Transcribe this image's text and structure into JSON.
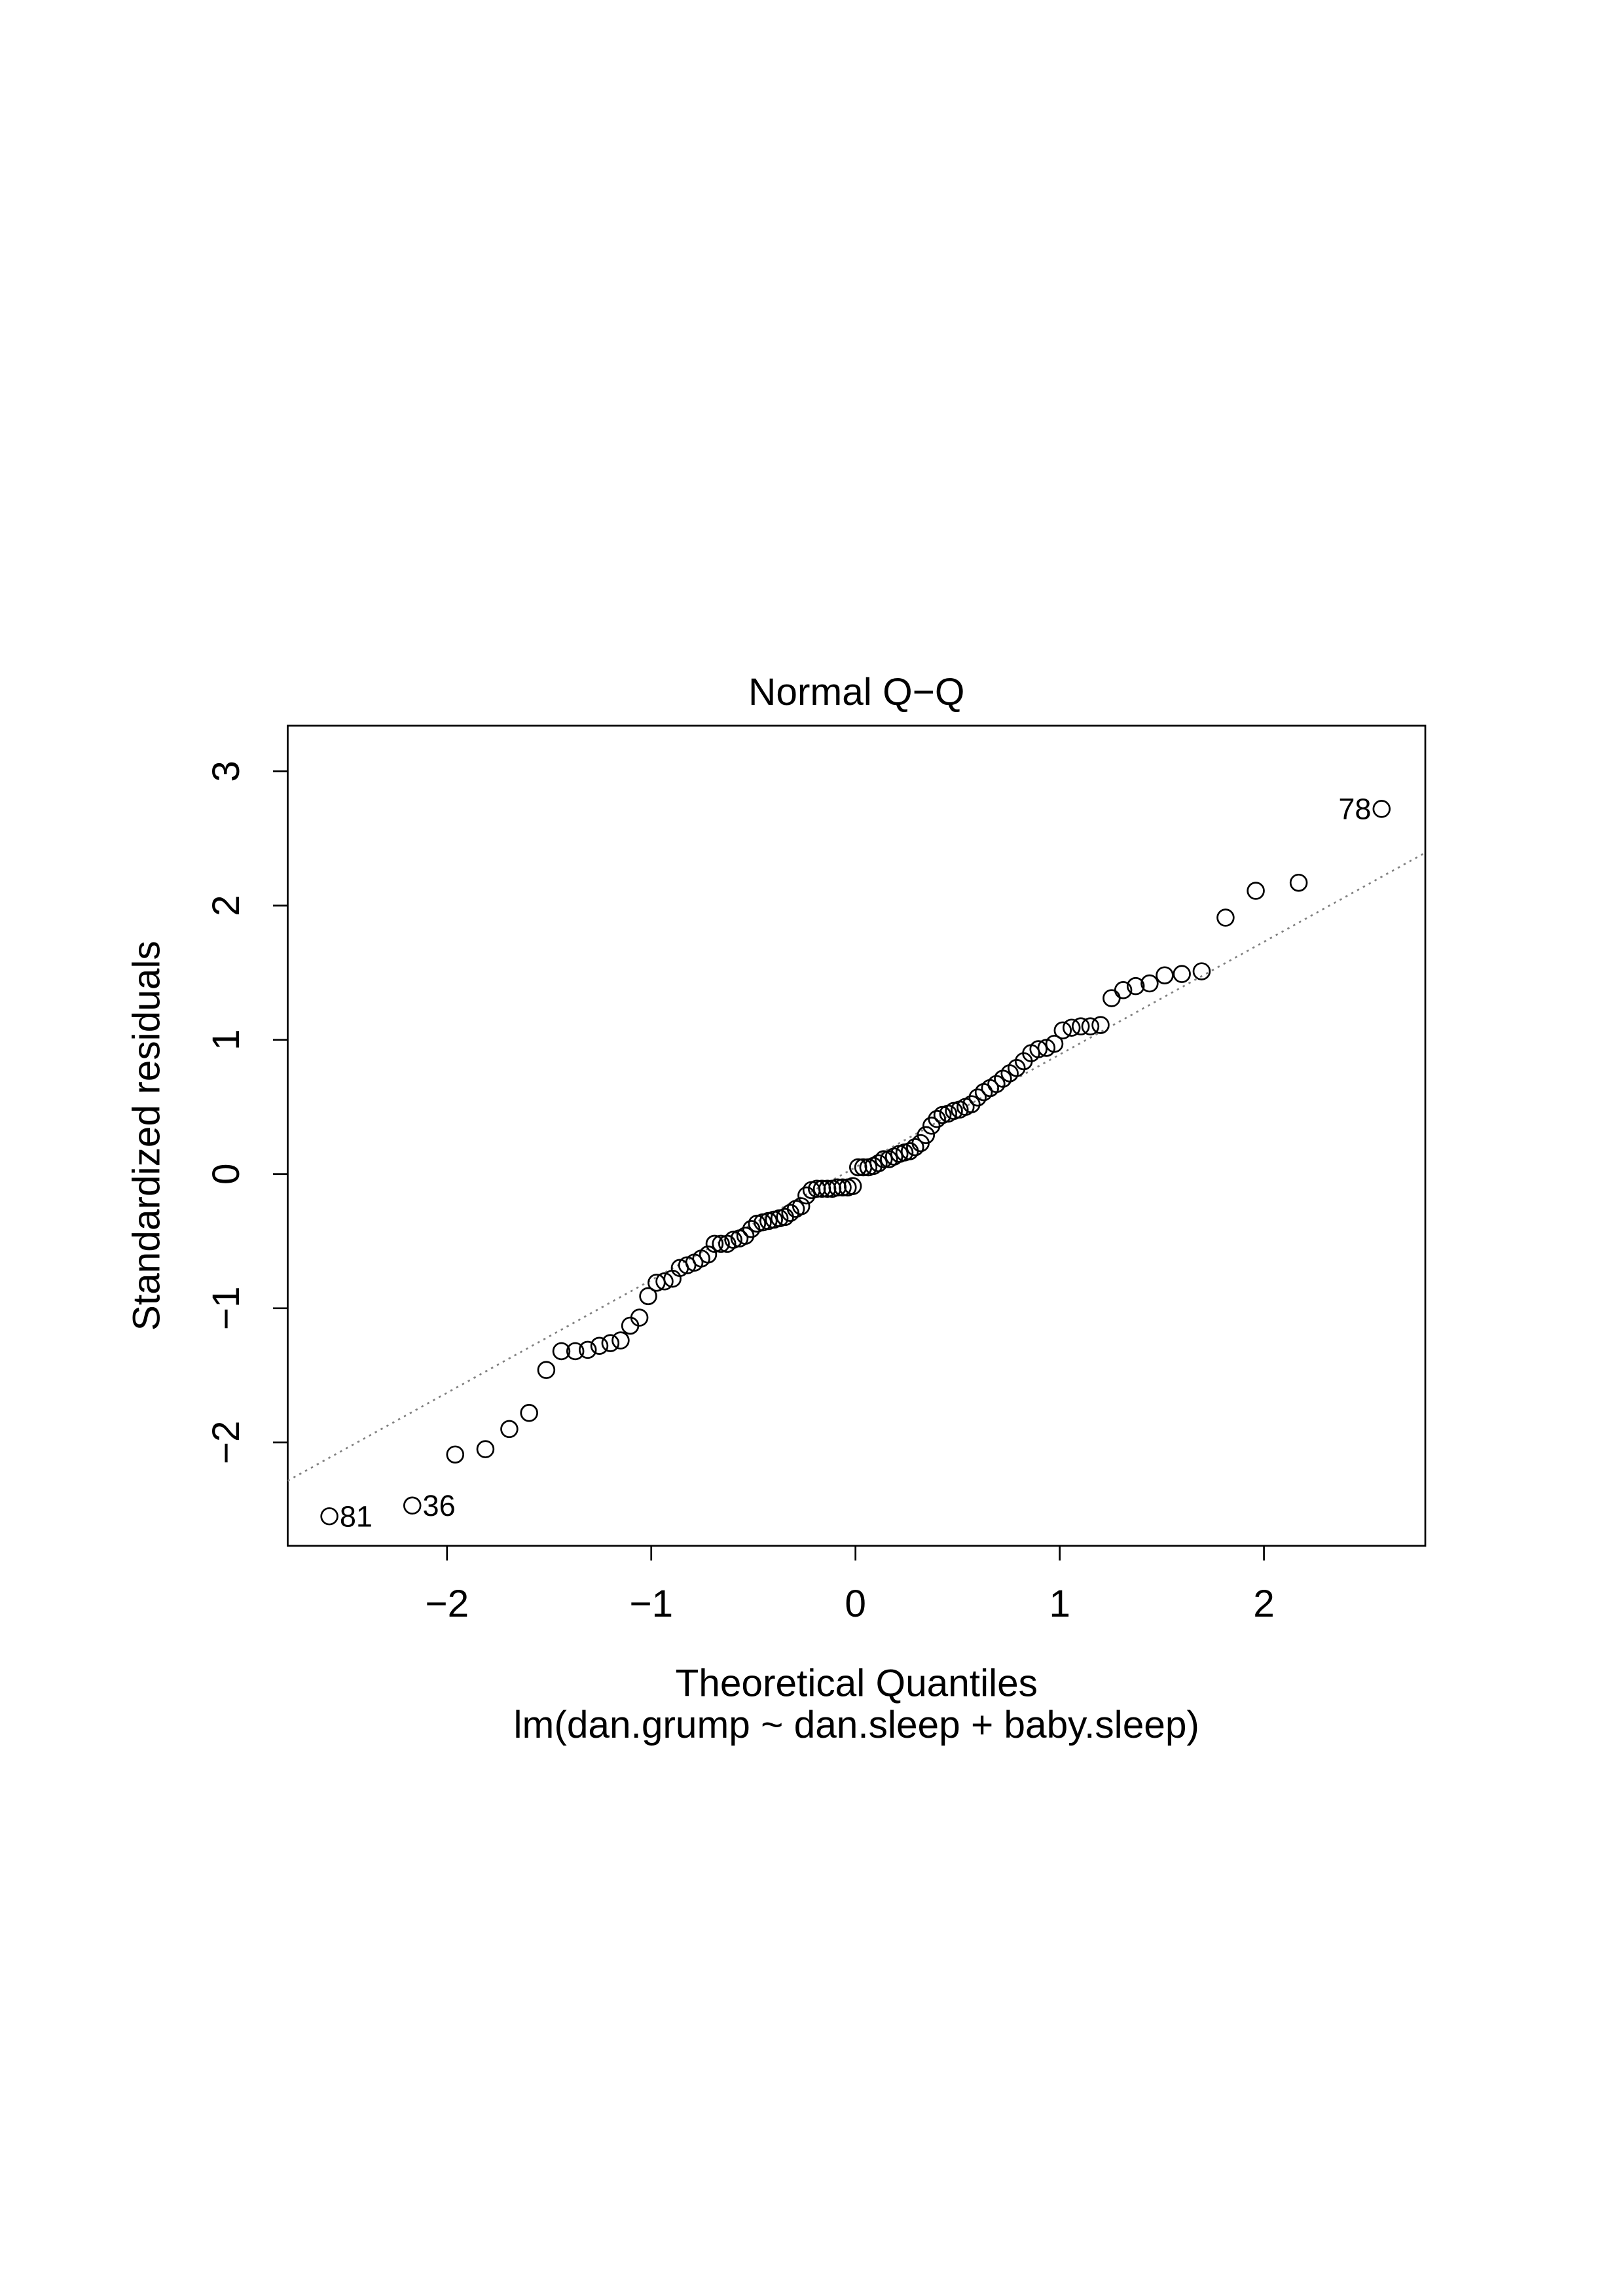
{
  "chart_data": {
    "type": "scatter",
    "title": "Normal Q−Q",
    "xlabel": "Theoretical Quantiles",
    "subtitle": "lm(dan.grump ~ dan.sleep + baby.sleep)",
    "ylabel": "Standardized residuals",
    "xlim": [
      -2.78,
      2.79
    ],
    "ylim": [
      -2.77,
      3.34
    ],
    "xticks": [
      {
        "value": -2,
        "label": "−2"
      },
      {
        "value": -1,
        "label": "−1"
      },
      0,
      1,
      2
    ],
    "yticks": [
      {
        "value": -2,
        "label": "−2"
      },
      {
        "value": -1,
        "label": "−1"
      },
      0,
      1,
      2,
      3
    ],
    "color": "#000000",
    "reference_line": {
      "intercept": 0.05,
      "slope": 0.84,
      "color": "#808080"
    },
    "x": [
      -2.576,
      -2.17,
      -1.96,
      -1.812,
      -1.695,
      -1.598,
      -1.514,
      -1.44,
      -1.372,
      -1.311,
      -1.254,
      -1.2,
      -1.15,
      -1.103,
      -1.058,
      -1.015,
      -0.974,
      -0.935,
      -0.896,
      -0.86,
      -0.824,
      -0.789,
      -0.755,
      -0.722,
      -0.69,
      -0.659,
      -0.628,
      -0.598,
      -0.568,
      -0.539,
      -0.51,
      -0.482,
      -0.454,
      -0.426,
      -0.399,
      -0.372,
      -0.345,
      -0.319,
      -0.292,
      -0.266,
      -0.24,
      -0.215,
      -0.189,
      -0.164,
      -0.138,
      -0.113,
      -0.088,
      -0.063,
      -0.038,
      -0.013,
      0.013,
      0.038,
      0.063,
      0.088,
      0.113,
      0.138,
      0.164,
      0.189,
      0.215,
      0.24,
      0.266,
      0.292,
      0.319,
      0.345,
      0.372,
      0.399,
      0.426,
      0.454,
      0.482,
      0.51,
      0.539,
      0.568,
      0.598,
      0.628,
      0.659,
      0.69,
      0.722,
      0.755,
      0.789,
      0.824,
      0.86,
      0.896,
      0.935,
      0.974,
      1.015,
      1.058,
      1.103,
      1.15,
      1.2,
      1.254,
      1.311,
      1.372,
      1.44,
      1.514,
      1.598,
      1.695,
      1.812,
      1.96,
      2.17,
      2.576
    ],
    "values": [
      -2.55,
      -2.47,
      -2.09,
      -2.05,
      -1.9,
      -1.78,
      -1.46,
      -1.32,
      -1.32,
      -1.31,
      -1.28,
      -1.26,
      -1.24,
      -1.13,
      -1.07,
      -0.91,
      -0.81,
      -0.8,
      -0.78,
      -0.7,
      -0.68,
      -0.66,
      -0.63,
      -0.6,
      -0.52,
      -0.52,
      -0.52,
      -0.49,
      -0.48,
      -0.46,
      -0.41,
      -0.37,
      -0.36,
      -0.35,
      -0.34,
      -0.33,
      -0.32,
      -0.29,
      -0.26,
      -0.24,
      -0.16,
      -0.12,
      -0.11,
      -0.11,
      -0.11,
      -0.11,
      -0.1,
      -0.1,
      -0.1,
      -0.09,
      0.05,
      0.05,
      0.05,
      0.06,
      0.08,
      0.11,
      0.11,
      0.13,
      0.15,
      0.16,
      0.17,
      0.2,
      0.23,
      0.29,
      0.36,
      0.41,
      0.44,
      0.45,
      0.47,
      0.48,
      0.5,
      0.52,
      0.57,
      0.61,
      0.64,
      0.67,
      0.71,
      0.75,
      0.79,
      0.84,
      0.9,
      0.93,
      0.94,
      0.97,
      1.07,
      1.09,
      1.1,
      1.1,
      1.11,
      1.31,
      1.37,
      1.4,
      1.42,
      1.48,
      1.49,
      1.51,
      1.91,
      2.11,
      2.17,
      2.72
    ],
    "point_labels": [
      "81",
      "36",
      null,
      null,
      null,
      null,
      null,
      null,
      null,
      null,
      null,
      null,
      null,
      null,
      null,
      null,
      null,
      null,
      null,
      null,
      null,
      null,
      null,
      null,
      null,
      null,
      null,
      null,
      null,
      null,
      null,
      null,
      null,
      null,
      null,
      null,
      null,
      null,
      null,
      null,
      null,
      null,
      null,
      null,
      null,
      null,
      null,
      null,
      null,
      null,
      null,
      null,
      null,
      null,
      null,
      null,
      null,
      null,
      null,
      null,
      null,
      null,
      null,
      null,
      null,
      null,
      null,
      null,
      null,
      null,
      null,
      null,
      null,
      null,
      null,
      null,
      null,
      null,
      null,
      null,
      null,
      null,
      null,
      null,
      null,
      null,
      null,
      null,
      null,
      null,
      null,
      null,
      null,
      null,
      null,
      null,
      null,
      null,
      null,
      "78"
    ]
  }
}
